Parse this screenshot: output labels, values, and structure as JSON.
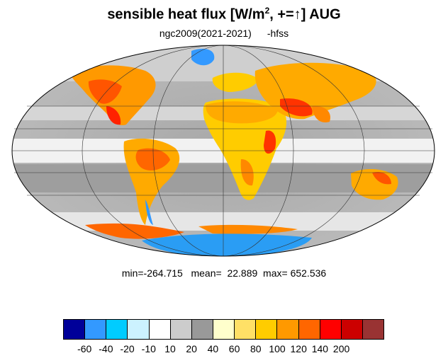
{
  "title": {
    "main": "sensible heat flux [W/m",
    "superscript": "2",
    "sign_part": ", +=",
    "arrow": "↑",
    "tail": "]  AUG"
  },
  "subtitle": {
    "case": "ngc2009(2021-2021)",
    "variable": "-hfss"
  },
  "stats": {
    "text": "min=-264.715   mean=  22.889  max= 652.536",
    "min": -264.715,
    "mean": 22.889,
    "max": 652.536
  },
  "map": {
    "projection": "mollweide",
    "field_colors": {
      "ocean_light_gray": "#cccccc",
      "ocean_dark_gray": "#999999",
      "near_zero": "#ffffff",
      "land_hot": "#ff6600",
      "land_warm": "#ffaa00",
      "ice_blue": "#2a9df4"
    },
    "parallels_deg": [
      -60,
      -30,
      0,
      30,
      60
    ],
    "meridians_deg": [
      -120,
      -60,
      0,
      60,
      120
    ]
  },
  "colorbar": {
    "colors": [
      "#000099",
      "#3399ff",
      "#00ccff",
      "#ccf2ff",
      "#ffffff",
      "#cccccc",
      "#999999",
      "#ffffcc",
      "#ffe066",
      "#ffcc00",
      "#ff9900",
      "#ff6600",
      "#ff0000",
      "#cc0000",
      "#993333"
    ],
    "labels": [
      "-60",
      "-40",
      "-20",
      "-10",
      "10",
      "20",
      "40",
      "60",
      "80",
      "100",
      "120",
      "140",
      "200"
    ]
  }
}
